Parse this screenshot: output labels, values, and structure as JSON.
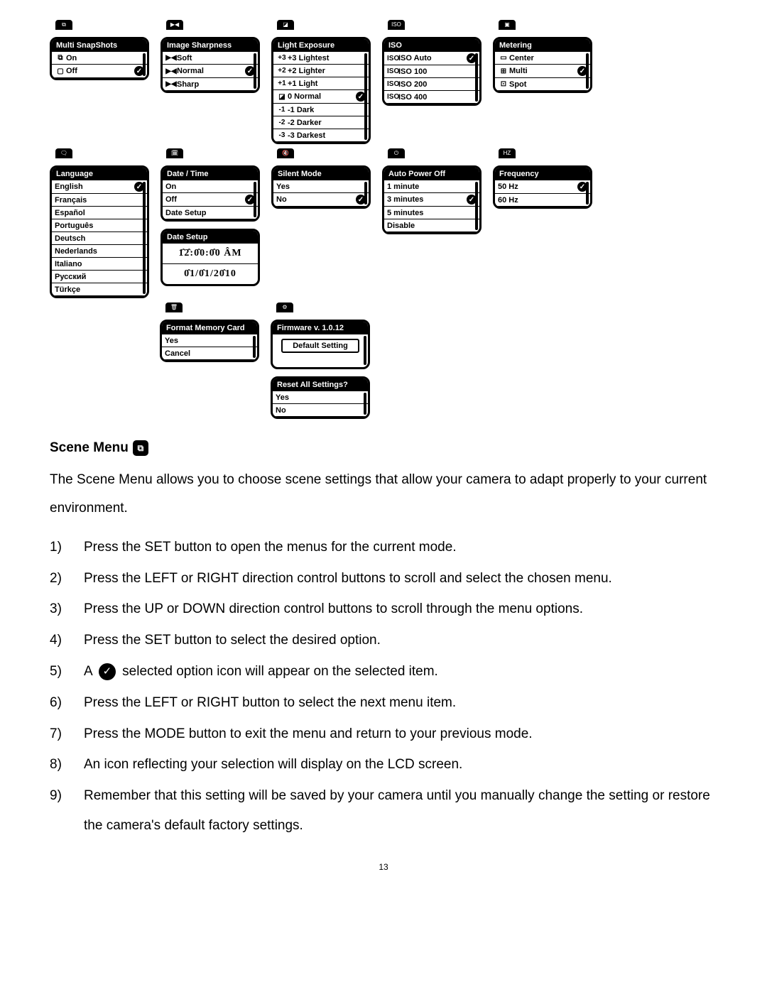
{
  "colors": {
    "bg": "#ffffff",
    "fg": "#000000"
  },
  "row1": [
    {
      "title": "Multi SnapShots",
      "tab": "⧉",
      "items": [
        {
          "icon": "⧉",
          "label": "On",
          "selected": false
        },
        {
          "icon": "▢",
          "label": "Off",
          "selected": true
        }
      ]
    },
    {
      "title": "Image Sharpness",
      "tab": "▶◀",
      "items": [
        {
          "icon": "▶◀",
          "label": "Soft",
          "selected": false
        },
        {
          "icon": "▶◀",
          "label": "Normal",
          "selected": true
        },
        {
          "icon": "▶◀",
          "label": "Sharp",
          "selected": false
        }
      ]
    },
    {
      "title": "Light Exposure",
      "tab": "◪",
      "items": [
        {
          "icon": "+3",
          "label": "+3 Lightest",
          "selected": false
        },
        {
          "icon": "+2",
          "label": "+2 Lighter",
          "selected": false
        },
        {
          "icon": "+1",
          "label": "+1 Light",
          "selected": false
        },
        {
          "icon": "◪",
          "label": "0 Normal",
          "selected": true
        },
        {
          "icon": "-1",
          "label": "-1 Dark",
          "selected": false
        },
        {
          "icon": "-2",
          "label": "-2 Darker",
          "selected": false
        },
        {
          "icon": "-3",
          "label": "-3 Darkest",
          "selected": false
        }
      ]
    },
    {
      "title": "ISO",
      "tab": "ISO",
      "items": [
        {
          "icon": "ISO",
          "label": "ISO Auto",
          "selected": true
        },
        {
          "icon": "ISO",
          "label": "ISO 100",
          "selected": false
        },
        {
          "icon": "ISO",
          "label": "ISO 200",
          "selected": false
        },
        {
          "icon": "ISO",
          "label": "ISO 400",
          "selected": false
        }
      ]
    },
    {
      "title": "Metering",
      "tab": "▣",
      "items": [
        {
          "icon": "▭",
          "label": "Center",
          "selected": false
        },
        {
          "icon": "⊞",
          "label": "Multi",
          "selected": true
        },
        {
          "icon": "⊡",
          "label": "Spot",
          "selected": false
        }
      ]
    }
  ],
  "row2": [
    {
      "title": "Language",
      "tab": "🗨",
      "items": [
        {
          "label": "English",
          "selected": true
        },
        {
          "label": "Français"
        },
        {
          "label": "Español"
        },
        {
          "label": "Português"
        },
        {
          "label": "Deutsch"
        },
        {
          "label": "Nederlands"
        },
        {
          "label": "Italiano"
        },
        {
          "label": "Русский"
        },
        {
          "label": "Türkçe"
        }
      ]
    },
    {
      "title": "Date / Time",
      "tab": "🗓",
      "items": [
        {
          "label": "On"
        },
        {
          "label": "Off",
          "selected": true
        },
        {
          "label": "Date Setup"
        }
      ],
      "dateSetup": {
        "title": "Date Setup",
        "time": "1̂2̂:0̂0:0̂0 ÂM",
        "date": "0̂1/0̂1/20̂10"
      }
    },
    {
      "title": "Silent Mode",
      "tab": "🔇",
      "items": [
        {
          "label": "Yes"
        },
        {
          "label": "No",
          "selected": true
        }
      ]
    },
    {
      "title": "Auto Power Off",
      "tab": "⏻",
      "items": [
        {
          "label": "1 minute"
        },
        {
          "label": "3 minutes",
          "selected": true
        },
        {
          "label": "5 minutes"
        },
        {
          "label": "Disable"
        }
      ]
    },
    {
      "title": "Frequency",
      "tab": "HZ",
      "items": [
        {
          "label": "50 Hz",
          "selected": true
        },
        {
          "label": "60 Hz"
        }
      ]
    }
  ],
  "row3": [
    {
      "title": "Format Memory Card",
      "tab": "🗑",
      "items": [
        {
          "label": "Yes"
        },
        {
          "label": "Cancel"
        }
      ]
    },
    {
      "firmware": {
        "title": "Firmware v. 1.0.12",
        "button": "Default Setting",
        "resetTitle": "Reset All Settings?",
        "resetItems": [
          {
            "label": "Yes"
          },
          {
            "label": "No"
          }
        ]
      }
    }
  ],
  "scene": {
    "heading": "Scene Menu",
    "intro": "The Scene Menu allows you to choose scene settings that allow your camera to adapt properly to your current environment.",
    "steps": [
      "Press the SET button to open the menus for the current mode.",
      "Press the LEFT or RIGHT direction control buttons to scroll and select the chosen menu.",
      "Press the UP or DOWN direction control buttons to scroll through the menu options.",
      "Press the SET button to select the desired option.",
      "__CHECK__",
      "Press the LEFT or RIGHT button to select the next menu item.",
      "Press the MODE button to exit the menu and return to your previous mode.",
      "An icon reflecting your selection will display on the LCD screen.",
      "Remember that this setting will be saved by your camera until you manually change the setting or restore the camera's default factory settings."
    ],
    "step5_pre": "A",
    "step5_post": "selected option icon will appear on the selected item."
  },
  "pageNumber": "13"
}
